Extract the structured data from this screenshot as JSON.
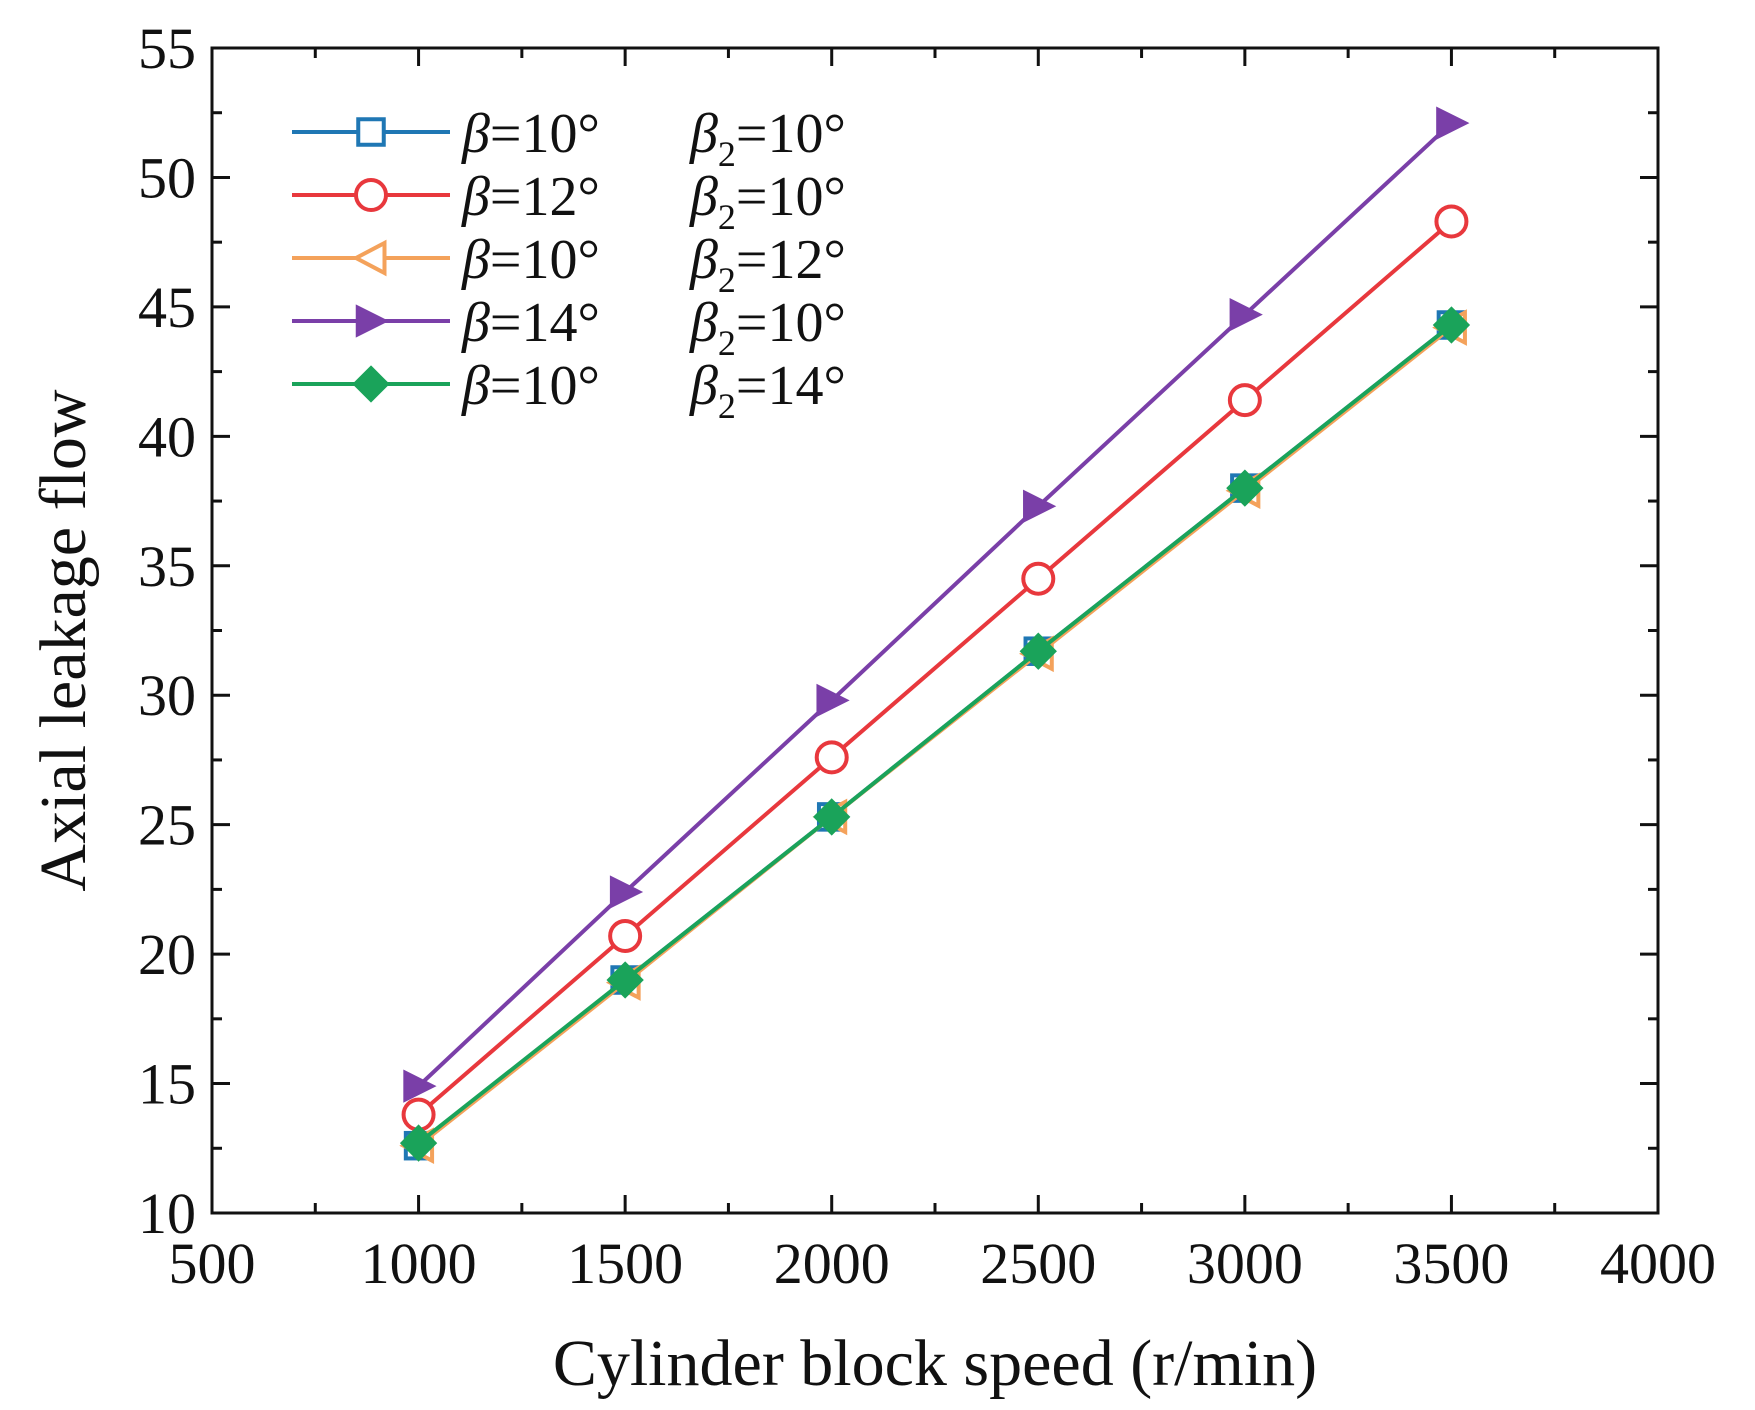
{
  "chart_data": {
    "type": "line",
    "title": "",
    "xlabel": "Cylinder block speed (r/min)",
    "ylabel": "Axial leakage flow",
    "xlim": [
      500,
      4000
    ],
    "ylim": [
      10,
      55
    ],
    "xticks": [
      500,
      1000,
      1500,
      2000,
      2500,
      3000,
      3500,
      4000
    ],
    "yticks": [
      10,
      15,
      20,
      25,
      30,
      35,
      40,
      45,
      50,
      55
    ],
    "grid": false,
    "legend_position": "top-left",
    "x": [
      1000,
      1500,
      2000,
      2500,
      3000,
      3500
    ],
    "series": [
      {
        "name": "β=10° β2=10°",
        "beta": "=10°",
        "beta2": "=10°",
        "color": "#1f77b4",
        "marker": "square-open",
        "values": [
          12.6,
          19.0,
          25.3,
          31.7,
          38.0,
          44.3
        ]
      },
      {
        "name": "β=12° β2=10°",
        "beta": "=12°",
        "beta2": "=10°",
        "color": "#e8383d",
        "marker": "circle-open",
        "values": [
          13.8,
          20.7,
          27.6,
          34.5,
          41.4,
          48.3
        ]
      },
      {
        "name": "β=10° β2=12°",
        "beta": "=10°",
        "beta2": "=12°",
        "color": "#f4a25b",
        "marker": "triangle-left-open",
        "values": [
          12.6,
          18.9,
          25.3,
          31.6,
          37.9,
          44.2
        ]
      },
      {
        "name": "β=14° β2=10°",
        "beta": "=14°",
        "beta2": "=10°",
        "color": "#7a3fa8",
        "marker": "triangle-right-filled",
        "values": [
          14.9,
          22.4,
          29.8,
          37.3,
          44.7,
          52.1
        ]
      },
      {
        "name": "β=10° β2=14°",
        "beta": "=10°",
        "beta2": "=14°",
        "color": "#1aa35a",
        "marker": "diamond-filled",
        "values": [
          12.7,
          19.0,
          25.3,
          31.7,
          38.0,
          44.3
        ]
      }
    ]
  }
}
